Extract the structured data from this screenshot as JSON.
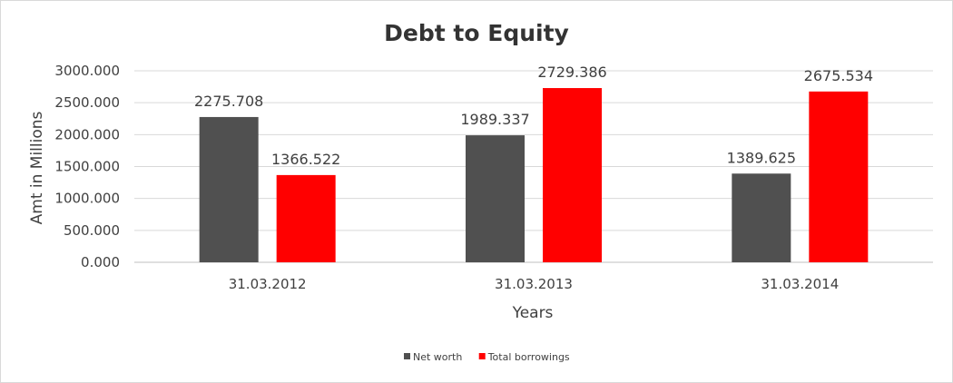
{
  "chart_data": {
    "type": "bar",
    "title": "Debt to Equity",
    "xlabel": "Years",
    "ylabel": "Amt in Millions",
    "categories": [
      "31.03.2012",
      "31.03.2013",
      "31.03.2014"
    ],
    "series": [
      {
        "name": "Net worth",
        "color": "#505050",
        "values": [
          2275.708,
          1989.337,
          1389.625
        ],
        "value_labels": [
          "2275.708",
          "1989.337",
          "1389.625"
        ]
      },
      {
        "name": "Total borrowings",
        "color": "#ff0000",
        "values": [
          1366.522,
          2729.386,
          2675.534
        ],
        "value_labels": [
          "1366.522",
          "2729.386",
          "2675.534"
        ]
      }
    ],
    "ylim": [
      0,
      3000
    ],
    "yticks": [
      0,
      500,
      1000,
      1500,
      2000,
      2500,
      3000
    ],
    "ytick_labels": [
      "0.000",
      "500.000",
      "1000.000",
      "1500.000",
      "2000.000",
      "2500.000",
      "3000.000"
    ],
    "grid": true,
    "legend_position": "bottom"
  }
}
